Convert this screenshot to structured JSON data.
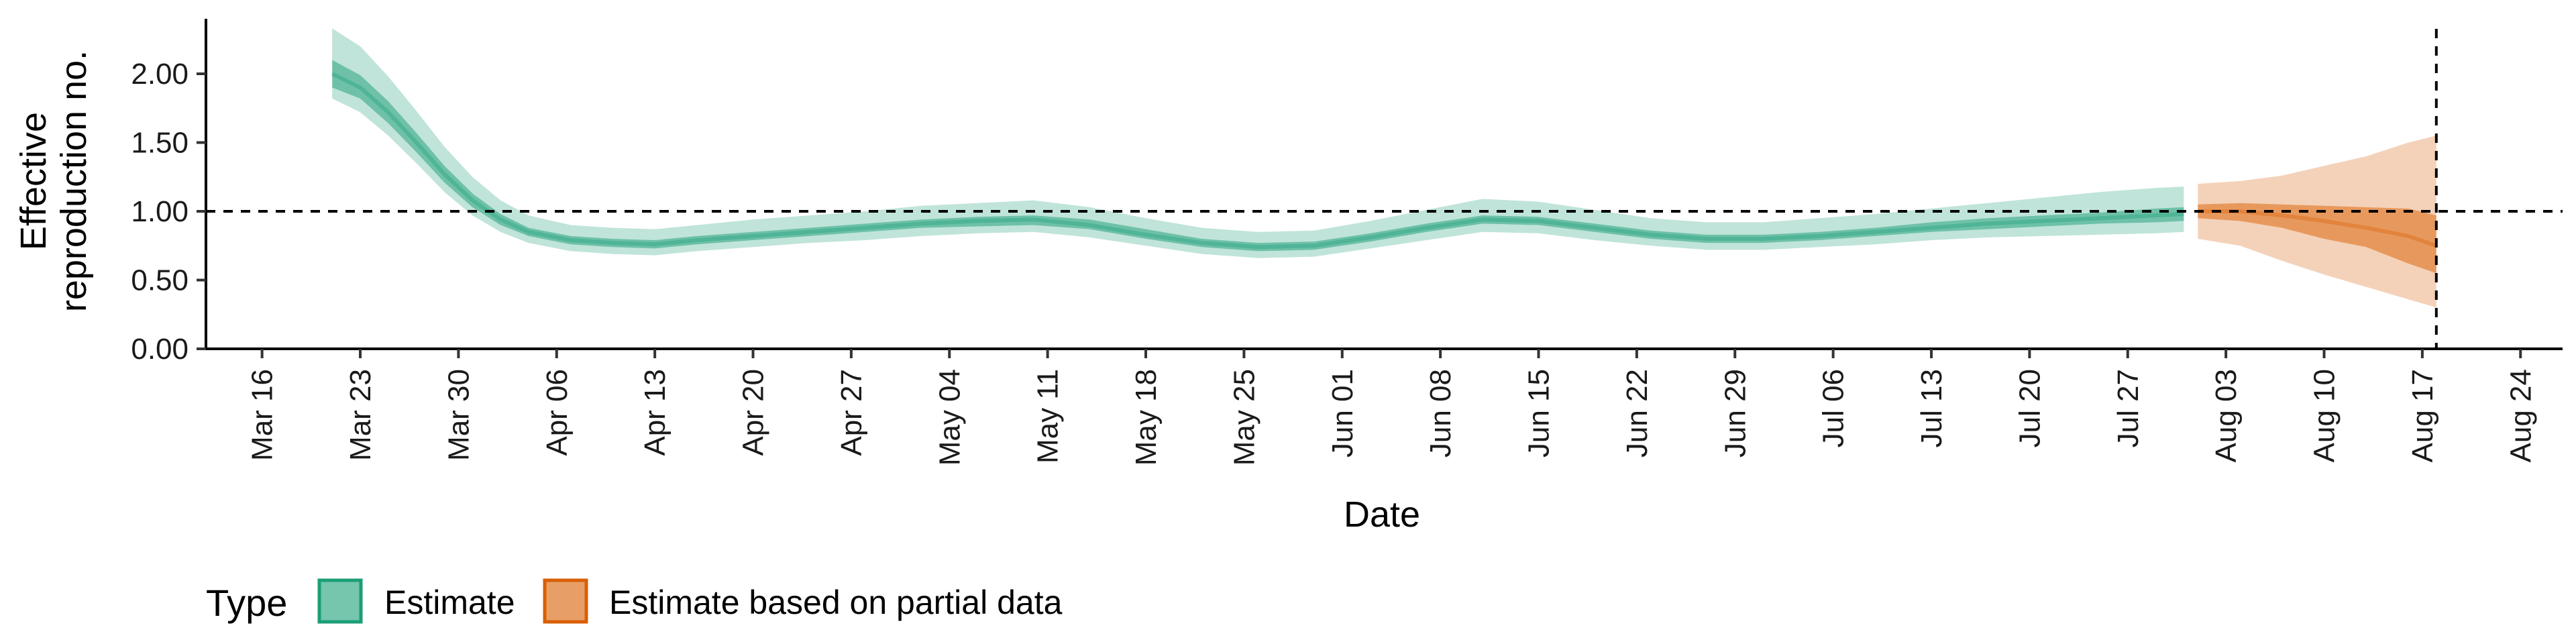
{
  "chart_data": {
    "type": "area",
    "xlabel": "Date",
    "ylabel_lines": [
      "Effective",
      "reproduction no."
    ],
    "ylim": [
      0,
      2.4
    ],
    "y_ticks": [
      0,
      0.5,
      1,
      1.5,
      2
    ],
    "y_tick_labels": [
      "0.00",
      "0.50",
      "1.00",
      "1.50",
      "2.00"
    ],
    "x_ticks": [
      "2020-03-16",
      "2020-03-23",
      "2020-03-30",
      "2020-04-06",
      "2020-04-13",
      "2020-04-20",
      "2020-04-27",
      "2020-05-04",
      "2020-05-11",
      "2020-05-18",
      "2020-05-25",
      "2020-06-01",
      "2020-06-08",
      "2020-06-15",
      "2020-06-22",
      "2020-06-29",
      "2020-07-06",
      "2020-07-13",
      "2020-07-20",
      "2020-07-27",
      "2020-08-03",
      "2020-08-10",
      "2020-08-17",
      "2020-08-24"
    ],
    "x_tick_labels": [
      "Mar 16",
      "Mar 23",
      "Mar 30",
      "Apr 06",
      "Apr 13",
      "Apr 20",
      "Apr 27",
      "May 04",
      "May 11",
      "May 18",
      "May 25",
      "Jun 01",
      "Jun 08",
      "Jun 15",
      "Jun 22",
      "Jun 29",
      "Jul 06",
      "Jul 13",
      "Jul 20",
      "Jul 27",
      "Aug 03",
      "Aug 10",
      "Aug 17",
      "Aug 24"
    ],
    "xlim": [
      "2020-03-12",
      "2020-08-27"
    ],
    "hline_y": 1.0,
    "vline_x": "2020-08-18",
    "grid": false,
    "legend_position": "bottom-left",
    "legend_title": "Type",
    "series": [
      {
        "name": "Estimate",
        "color": "#1b9e77",
        "points": [
          {
            "x": "2020-03-21",
            "median": 2.0,
            "lower50": 1.9,
            "upper50": 2.1,
            "lower90": 1.82,
            "upper90": 2.33
          },
          {
            "x": "2020-03-23",
            "median": 1.9,
            "lower50": 1.82,
            "upper50": 1.99,
            "lower90": 1.72,
            "upper90": 2.2
          },
          {
            "x": "2020-03-25",
            "median": 1.72,
            "lower50": 1.64,
            "upper50": 1.8,
            "lower90": 1.55,
            "upper90": 1.98
          },
          {
            "x": "2020-03-27",
            "median": 1.5,
            "lower50": 1.43,
            "upper50": 1.57,
            "lower90": 1.35,
            "upper90": 1.73
          },
          {
            "x": "2020-03-29",
            "median": 1.27,
            "lower50": 1.21,
            "upper50": 1.33,
            "lower90": 1.14,
            "upper90": 1.47
          },
          {
            "x": "2020-03-31",
            "median": 1.08,
            "lower50": 1.03,
            "upper50": 1.13,
            "lower90": 0.97,
            "upper90": 1.25
          },
          {
            "x": "2020-04-02",
            "median": 0.94,
            "lower50": 0.9,
            "upper50": 0.98,
            "lower90": 0.85,
            "upper90": 1.08
          },
          {
            "x": "2020-04-04",
            "median": 0.85,
            "lower50": 0.82,
            "upper50": 0.88,
            "lower90": 0.77,
            "upper90": 0.97
          },
          {
            "x": "2020-04-07",
            "median": 0.79,
            "lower50": 0.76,
            "upper50": 0.82,
            "lower90": 0.71,
            "upper90": 0.9
          },
          {
            "x": "2020-04-10",
            "median": 0.77,
            "lower50": 0.74,
            "upper50": 0.8,
            "lower90": 0.69,
            "upper90": 0.88
          },
          {
            "x": "2020-04-13",
            "median": 0.76,
            "lower50": 0.73,
            "upper50": 0.79,
            "lower90": 0.68,
            "upper90": 0.87
          },
          {
            "x": "2020-04-16",
            "median": 0.79,
            "lower50": 0.76,
            "upper50": 0.82,
            "lower90": 0.71,
            "upper90": 0.9
          },
          {
            "x": "2020-04-20",
            "median": 0.82,
            "lower50": 0.79,
            "upper50": 0.85,
            "lower90": 0.74,
            "upper90": 0.94
          },
          {
            "x": "2020-04-24",
            "median": 0.85,
            "lower50": 0.82,
            "upper50": 0.88,
            "lower90": 0.77,
            "upper90": 0.97
          },
          {
            "x": "2020-04-28",
            "median": 0.88,
            "lower50": 0.85,
            "upper50": 0.91,
            "lower90": 0.79,
            "upper90": 1.0
          },
          {
            "x": "2020-05-02",
            "median": 0.91,
            "lower50": 0.88,
            "upper50": 0.94,
            "lower90": 0.82,
            "upper90": 1.04
          },
          {
            "x": "2020-05-06",
            "median": 0.93,
            "lower50": 0.89,
            "upper50": 0.96,
            "lower90": 0.84,
            "upper90": 1.06
          },
          {
            "x": "2020-05-10",
            "median": 0.94,
            "lower50": 0.9,
            "upper50": 0.97,
            "lower90": 0.85,
            "upper90": 1.08
          },
          {
            "x": "2020-05-14",
            "median": 0.9,
            "lower50": 0.87,
            "upper50": 0.94,
            "lower90": 0.81,
            "upper90": 1.03
          },
          {
            "x": "2020-05-18",
            "median": 0.83,
            "lower50": 0.8,
            "upper50": 0.87,
            "lower90": 0.75,
            "upper90": 0.95
          },
          {
            "x": "2020-05-22",
            "median": 0.77,
            "lower50": 0.74,
            "upper50": 0.8,
            "lower90": 0.69,
            "upper90": 0.88
          },
          {
            "x": "2020-05-26",
            "median": 0.74,
            "lower50": 0.71,
            "upper50": 0.77,
            "lower90": 0.66,
            "upper90": 0.85
          },
          {
            "x": "2020-05-30",
            "median": 0.75,
            "lower50": 0.72,
            "upper50": 0.78,
            "lower90": 0.67,
            "upper90": 0.86
          },
          {
            "x": "2020-06-03",
            "median": 0.81,
            "lower50": 0.78,
            "upper50": 0.84,
            "lower90": 0.73,
            "upper90": 0.93
          },
          {
            "x": "2020-06-07",
            "median": 0.88,
            "lower50": 0.85,
            "upper50": 0.91,
            "lower90": 0.79,
            "upper90": 1.01
          },
          {
            "x": "2020-06-11",
            "median": 0.94,
            "lower50": 0.91,
            "upper50": 0.97,
            "lower90": 0.85,
            "upper90": 1.09
          },
          {
            "x": "2020-06-15",
            "median": 0.93,
            "lower50": 0.9,
            "upper50": 0.96,
            "lower90": 0.84,
            "upper90": 1.07
          },
          {
            "x": "2020-06-19",
            "median": 0.88,
            "lower50": 0.85,
            "upper50": 0.91,
            "lower90": 0.79,
            "upper90": 1.01
          },
          {
            "x": "2020-06-23",
            "median": 0.83,
            "lower50": 0.8,
            "upper50": 0.86,
            "lower90": 0.75,
            "upper90": 0.95
          },
          {
            "x": "2020-06-27",
            "median": 0.8,
            "lower50": 0.77,
            "upper50": 0.83,
            "lower90": 0.72,
            "upper90": 0.92
          },
          {
            "x": "2020-07-01",
            "median": 0.8,
            "lower50": 0.77,
            "upper50": 0.83,
            "lower90": 0.72,
            "upper90": 0.92
          },
          {
            "x": "2020-07-05",
            "median": 0.82,
            "lower50": 0.79,
            "upper50": 0.85,
            "lower90": 0.74,
            "upper90": 0.95
          },
          {
            "x": "2020-07-09",
            "median": 0.85,
            "lower50": 0.82,
            "upper50": 0.88,
            "lower90": 0.76,
            "upper90": 0.98
          },
          {
            "x": "2020-07-13",
            "median": 0.88,
            "lower50": 0.85,
            "upper50": 0.92,
            "lower90": 0.79,
            "upper90": 1.02
          },
          {
            "x": "2020-07-17",
            "median": 0.91,
            "lower50": 0.87,
            "upper50": 0.95,
            "lower90": 0.81,
            "upper90": 1.06
          },
          {
            "x": "2020-07-21",
            "median": 0.93,
            "lower50": 0.89,
            "upper50": 0.97,
            "lower90": 0.82,
            "upper90": 1.1
          },
          {
            "x": "2020-07-25",
            "median": 0.95,
            "lower50": 0.91,
            "upper50": 0.99,
            "lower90": 0.83,
            "upper90": 1.14
          },
          {
            "x": "2020-07-29",
            "median": 0.97,
            "lower50": 0.92,
            "upper50": 1.02,
            "lower90": 0.84,
            "upper90": 1.17
          },
          {
            "x": "2020-07-31",
            "median": 0.98,
            "lower50": 0.93,
            "upper50": 1.03,
            "lower90": 0.85,
            "upper90": 1.18
          }
        ]
      },
      {
        "name": "Estimate based on partial data",
        "color": "#d95f02",
        "points": [
          {
            "x": "2020-08-01",
            "median": 1.0,
            "lower50": 0.95,
            "upper50": 1.05,
            "lower90": 0.8,
            "upper90": 1.2
          },
          {
            "x": "2020-08-04",
            "median": 1.0,
            "lower50": 0.93,
            "upper50": 1.06,
            "lower90": 0.75,
            "upper90": 1.22
          },
          {
            "x": "2020-08-07",
            "median": 0.97,
            "lower50": 0.88,
            "upper50": 1.05,
            "lower90": 0.64,
            "upper90": 1.26
          },
          {
            "x": "2020-08-10",
            "median": 0.93,
            "lower50": 0.8,
            "upper50": 1.04,
            "lower90": 0.54,
            "upper90": 1.33
          },
          {
            "x": "2020-08-13",
            "median": 0.88,
            "lower50": 0.74,
            "upper50": 1.03,
            "lower90": 0.45,
            "upper90": 1.4
          },
          {
            "x": "2020-08-16",
            "median": 0.82,
            "lower50": 0.62,
            "upper50": 1.02,
            "lower90": 0.36,
            "upper90": 1.5
          },
          {
            "x": "2020-08-18",
            "median": 0.75,
            "lower50": 0.55,
            "upper50": 0.97,
            "lower90": 0.3,
            "upper90": 1.55
          }
        ]
      }
    ]
  }
}
